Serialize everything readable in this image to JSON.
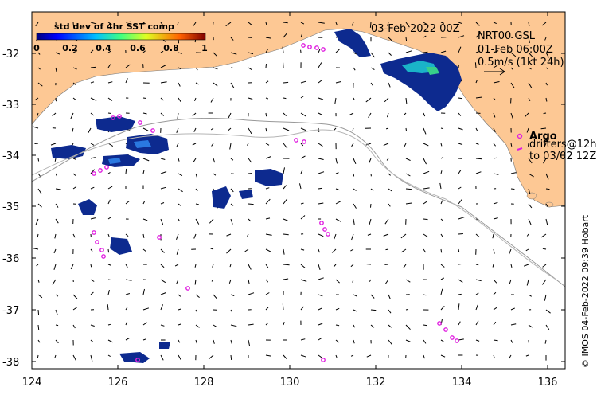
{
  "map": {
    "date_label": "03-Feb-2022 00Z",
    "product_label": "NRT00 GSL",
    "time_label": "01-Feb 06:00Z",
    "scale_label": "0.5m/s (1kt 24h)",
    "legend_argo": "Argo",
    "legend_drifters_1": "drifters@12h",
    "legend_drifters_2": "to 03/02 12Z",
    "credit": "© IMOS 04-Feb-2022 09:39 Hobart"
  },
  "colorbar": {
    "title": "std dev of 4hr SST comp",
    "ticks": [
      "0",
      "0.2",
      "0.4",
      "0.6",
      "0.8",
      "1"
    ]
  },
  "axes": {
    "x_ticks": [
      "124",
      "126",
      "128",
      "130",
      "132",
      "134",
      "136"
    ],
    "y_ticks": [
      "-32",
      "-33",
      "-34",
      "-35",
      "-36",
      "-37",
      "-38"
    ],
    "xlim": [
      124,
      136.5
    ],
    "ylim": [
      -38.1,
      -31.3
    ]
  },
  "colors": {
    "land": "#fdc894",
    "sst_patch": "#0d2a8f",
    "argo": "#e020e0"
  }
}
